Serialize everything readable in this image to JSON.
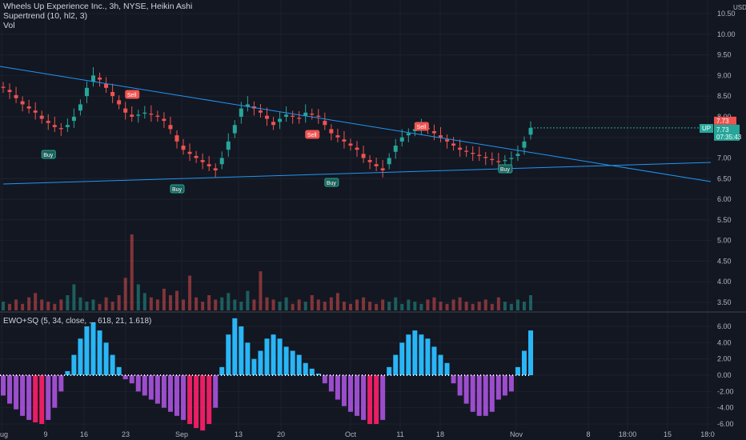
{
  "legend": {
    "title": "Wheels Up Experience Inc., 3h, NYSE, Heikin Ashi",
    "supertrend": "Supertrend (10, hl2, 3)",
    "vol": "Vol",
    "ewo": "EWO+SQ (5, 34, close, ... 618, 21, 1.618)"
  },
  "currency": "USD",
  "current": {
    "price": "7.73",
    "countdown": "07:35:43",
    "state_label": "UP",
    "red_tag": "7.73"
  },
  "colors": {
    "background": "#131722",
    "up": "#26a69a",
    "down": "#ef5350",
    "trendline": "#2196f3",
    "ewo_pos": "#29b6f6",
    "ewo_neg": "#9c4dcc",
    "ewo_neg_strong": "#e91e63"
  },
  "chart_data": {
    "type": "candlestick",
    "price_axis": [
      "10.50",
      "10.00",
      "9.50",
      "9.00",
      "8.50",
      "8.00",
      "7.50",
      "7.00",
      "6.50",
      "6.00",
      "5.50",
      "5.00",
      "4.50",
      "4.00",
      "3.50"
    ],
    "x_axis": [
      "Aug",
      "9",
      "16",
      "23",
      "Sep",
      "13",
      "20",
      "Oct",
      "11",
      "18",
      "Nov",
      "8",
      "18:00",
      "15",
      "18:0"
    ],
    "ewo_axis": [
      "6.00",
      "4.00",
      "2.00",
      "0.00",
      "-2.00",
      "-4.00",
      "-6.00"
    ],
    "signals": [
      {
        "label": "Buy",
        "type": "buy"
      },
      {
        "label": "Sell",
        "type": "sell"
      },
      {
        "label": "Buy",
        "type": "buy"
      },
      {
        "label": "Sell",
        "type": "sell"
      },
      {
        "label": "Buy",
        "type": "buy"
      },
      {
        "label": "Sell",
        "type": "sell"
      },
      {
        "label": "Buy",
        "type": "buy"
      }
    ],
    "closes": [
      8.7,
      8.6,
      8.45,
      8.3,
      8.2,
      8.1,
      7.95,
      7.85,
      7.75,
      7.7,
      7.8,
      8.0,
      8.3,
      8.7,
      9.0,
      8.9,
      8.7,
      8.5,
      8.3,
      8.1,
      8.0,
      8.05,
      8.1,
      8.05,
      8.0,
      7.9,
      7.7,
      7.4,
      7.2,
      7.1,
      7.0,
      6.9,
      6.8,
      6.7,
      7.0,
      7.4,
      7.8,
      8.2,
      8.3,
      8.2,
      8.1,
      7.95,
      7.8,
      7.95,
      8.05,
      8.0,
      7.95,
      8.1,
      8.05,
      8.0,
      7.8,
      7.6,
      7.5,
      7.4,
      7.3,
      7.2,
      7.0,
      6.9,
      6.8,
      6.7,
      7.0,
      7.3,
      7.5,
      7.6,
      7.7,
      7.75,
      7.7,
      7.6,
      7.5,
      7.4,
      7.3,
      7.2,
      7.15,
      7.1,
      7.05,
      7.0,
      6.95,
      6.9,
      6.95,
      7.0,
      7.1,
      7.4,
      7.73
    ],
    "volume": [
      0.4,
      0.3,
      0.5,
      0.3,
      0.6,
      0.8,
      0.5,
      0.4,
      0.3,
      0.5,
      0.7,
      1.2,
      0.6,
      0.4,
      0.5,
      0.3,
      0.6,
      0.4,
      0.7,
      1.5,
      3.5,
      1.2,
      0.8,
      0.6,
      0.5,
      1.0,
      0.7,
      0.9,
      0.5,
      1.6,
      0.6,
      0.4,
      0.7,
      0.5,
      0.6,
      0.8,
      0.5,
      0.4,
      0.9,
      0.5,
      1.8,
      0.6,
      0.5,
      0.4,
      0.6,
      0.3,
      0.5,
      0.4,
      0.7,
      0.5,
      0.4,
      0.6,
      0.8,
      0.4,
      0.3,
      0.5,
      0.6,
      0.4,
      0.3,
      0.5,
      0.4,
      0.6,
      0.3,
      0.5,
      0.4,
      0.3,
      0.5,
      0.6,
      0.4,
      0.3,
      0.5,
      0.6,
      0.4,
      0.3,
      0.4,
      0.5,
      0.3,
      0.6,
      0.4,
      0.3,
      0.5,
      0.4,
      0.7
    ],
    "ewo": [
      -2.5,
      -3.5,
      -4.2,
      -5.0,
      -5.5,
      -5.8,
      -6.0,
      -5.5,
      -4.0,
      -2.0,
      0.5,
      2.5,
      4.5,
      6.0,
      6.5,
      5.5,
      4.0,
      2.5,
      1.0,
      -0.5,
      -1.0,
      -2.0,
      -2.5,
      -3.0,
      -3.5,
      -4.0,
      -4.5,
      -5.0,
      -5.5,
      -6.0,
      -6.5,
      -6.8,
      -6.0,
      -4.0,
      1.0,
      5.0,
      7.0,
      6.0,
      4.0,
      2.0,
      3.0,
      4.5,
      5.0,
      4.5,
      3.5,
      3.0,
      2.5,
      1.5,
      0.8,
      0.2,
      -1.0,
      -2.0,
      -3.0,
      -3.8,
      -4.5,
      -5.0,
      -5.5,
      -6.0,
      -6.0,
      -5.5,
      1.0,
      2.5,
      4.0,
      5.0,
      5.5,
      5.0,
      4.5,
      3.5,
      2.5,
      1.5,
      -1.0,
      -2.5,
      -3.5,
      -4.5,
      -5.0,
      -5.0,
      -4.5,
      -3.0,
      -2.5,
      -2.0,
      1.0,
      3.0,
      5.5
    ]
  }
}
